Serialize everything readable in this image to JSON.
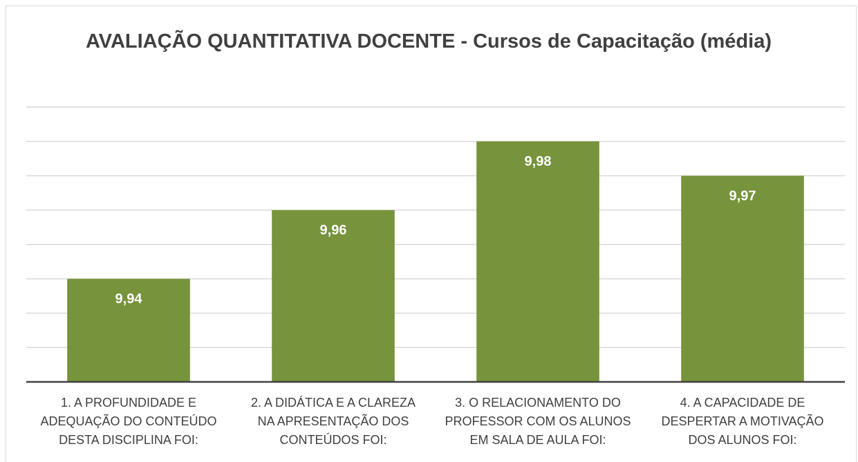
{
  "chart_data": {
    "type": "bar",
    "title": "AVALIAÇÃO QUANTITATIVA DOCENTE - Cursos de Capacitação (média)",
    "categories": [
      "1. A PROFUNDIDADE E\nADEQUAÇÃO DO CONTEÚDO\nDESTA DISCIPLINA FOI:",
      "2. A DIDÁTICA E A CLAREZA\nNA APRESENTAÇÃO DOS\nCONTEÚDOS FOI:",
      "3. O RELACIONAMENTO DO\nPROFESSOR COM OS ALUNOS\nEM SALA DE AULA FOI:",
      "4. A CAPACIDADE DE\nDESPERTAR A MOTIVAÇÃO\nDOS ALUNOS FOI:"
    ],
    "values": [
      9.94,
      9.96,
      9.98,
      9.97
    ],
    "value_labels": [
      "9,94",
      "9,96",
      "9,98",
      "9,97"
    ],
    "color": "#77933c",
    "ylim": [
      9.91,
      9.99
    ],
    "yticks": [
      9.91,
      9.92,
      9.93,
      9.94,
      9.95,
      9.96,
      9.97,
      9.98,
      9.99
    ],
    "grid": true
  }
}
